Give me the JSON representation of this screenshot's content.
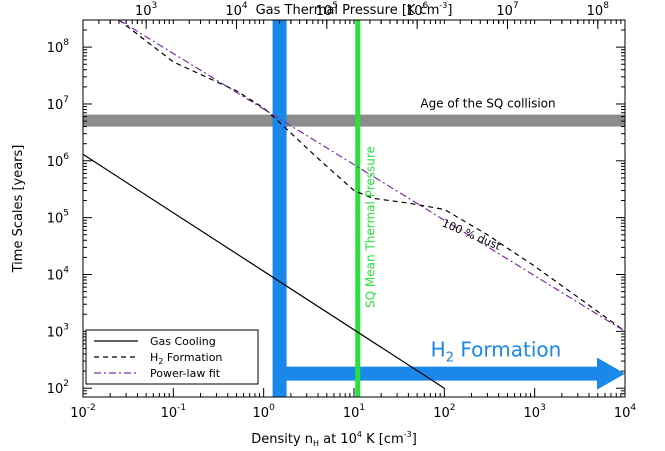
{
  "chart_data": {
    "type": "line",
    "xlabel": "Density n_H at 10^4 K [cm^-3]",
    "ylabel": "Time Scales [years]",
    "top_xlabel": "Gas Thermal Pressure [K cm^-3]",
    "xscale": "log",
    "yscale": "log",
    "xlim": [
      0.01,
      10000
    ],
    "ylim": [
      70,
      300000000
    ],
    "top_xlim": [
      200,
      200000000
    ],
    "x_ticks": [
      {
        "value": 0.01,
        "base": "10",
        "exp": "-2"
      },
      {
        "value": 0.1,
        "base": "10",
        "exp": "-1"
      },
      {
        "value": 1,
        "base": "10",
        "exp": "0"
      },
      {
        "value": 10,
        "base": "10",
        "exp": "1"
      },
      {
        "value": 100,
        "base": "10",
        "exp": "2"
      },
      {
        "value": 1000,
        "base": "10",
        "exp": "3"
      },
      {
        "value": 10000,
        "base": "10",
        "exp": "4"
      }
    ],
    "y_ticks": [
      {
        "value": 100,
        "base": "10",
        "exp": "2"
      },
      {
        "value": 1000,
        "base": "10",
        "exp": "3"
      },
      {
        "value": 10000,
        "base": "10",
        "exp": "4"
      },
      {
        "value": 100000,
        "base": "10",
        "exp": "5"
      },
      {
        "value": 1000000,
        "base": "10",
        "exp": "6"
      },
      {
        "value": 10000000,
        "base": "10",
        "exp": "7"
      },
      {
        "value": 100000000,
        "base": "10",
        "exp": "8"
      }
    ],
    "top_x_ticks": [
      {
        "value": 1000,
        "base": "10",
        "exp": "3"
      },
      {
        "value": 10000,
        "base": "10",
        "exp": "4"
      },
      {
        "value": 100000,
        "base": "10",
        "exp": "5"
      },
      {
        "value": 1000000,
        "base": "10",
        "exp": "6"
      },
      {
        "value": 10000000,
        "base": "10",
        "exp": "7"
      },
      {
        "value": 100000000,
        "base": "10",
        "exp": "8"
      }
    ],
    "series": [
      {
        "name": "Gas Cooling",
        "style": "solid",
        "color": "#000000",
        "x": [
          0.01,
          100
        ],
        "y": [
          1300000,
          100
        ]
      },
      {
        "name": "H2 Formation",
        "style": "dashed",
        "color": "#000000",
        "x": [
          0.025,
          0.1,
          0.5,
          1.0,
          1.6,
          4,
          10,
          16,
          40,
          100,
          300,
          1000,
          3000,
          10000
        ],
        "y": [
          300000000,
          55000000,
          17000000,
          8500000,
          4300000,
          1100000,
          300000,
          220000,
          180000,
          140000,
          50000,
          14000,
          4000,
          1000
        ]
      },
      {
        "name": "Power-law fit",
        "style": "dash-dot",
        "color": "#7b2d9e",
        "x": [
          0.025,
          10000
        ],
        "y": [
          300000000,
          1000
        ]
      }
    ],
    "age_band": {
      "label": "Age of the SQ collision",
      "y_low": 4000000,
      "y_high": 6500000,
      "color": "#8c8c8c"
    },
    "h2_formation_bar": {
      "x": 1.5,
      "color": "#1a87ea"
    },
    "h2_formation_arrow": {
      "label_base": "H",
      "label_sub": "2",
      "label_rest": " Formation",
      "x_start": 1.5,
      "x_end": 10000,
      "y": 180,
      "color": "#1a87ea"
    },
    "mean_pressure_line": {
      "x": 11,
      "label": "SQ Mean Thermal Pressure",
      "color": "#2ae03c"
    },
    "dust_annotation": "100 % dust",
    "legend": {
      "position": "bottom-left"
    },
    "grid": false
  }
}
